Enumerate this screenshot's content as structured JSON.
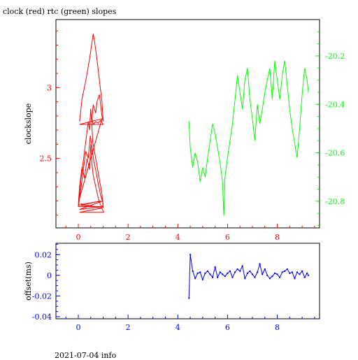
{
  "title": "clock (red) rtc (green) slopes",
  "footer": "2021-07-04 info",
  "colors": {
    "red": "#ff0000",
    "green": "#00ff00",
    "blue": "#0000ff",
    "axis": "#000000"
  },
  "chart_data": [
    {
      "type": "line",
      "panel": "slopes",
      "ylabel": "clockslope",
      "xlim": [
        -0.9,
        9.7
      ],
      "xticks": [
        0,
        2,
        4,
        6,
        8
      ],
      "left_axis": {
        "ylim": [
          2.01,
          3.48
        ],
        "ticks": [
          2.5,
          3
        ],
        "tick_labels": [
          "2.5",
          "3"
        ],
        "color": "#ff0000"
      },
      "right_axis": {
        "ylim": [
          -20.91,
          -20.05
        ],
        "ticks": [
          -20.8,
          -20.6,
          -20.4,
          -20.2
        ],
        "tick_labels": [
          "-20.8",
          "-20.6",
          "-20.4",
          "-20.2"
        ],
        "color": "#00ff00"
      },
      "series": [
        {
          "color": "#ff0000",
          "axis": "left",
          "x": [
            0.05,
            0.15,
            0.3,
            0.45,
            0.55,
            0.6,
            0.65,
            0.75,
            0.85,
            0.95,
            1.0,
            0.95,
            0.85,
            0.75,
            0.7,
            0.6,
            0.55,
            0.6,
            0.7,
            0.8,
            0.9,
            1.0,
            0.05,
            0.95,
            0.02,
            0.1,
            0.2,
            0.3,
            0.4,
            0.45,
            0.5,
            0.55,
            0.58,
            0.65,
            0.75,
            0.85,
            0.95,
            1.0,
            0.98,
            0.05,
            0.95,
            0.0,
            0.1,
            0.2,
            0.3,
            0.4,
            0.48,
            0.55,
            0.62,
            0.7,
            0.8,
            0.9,
            1.0,
            0.95,
            0.1,
            0.9,
            0.0,
            0.05,
            0.15,
            0.25,
            0.35,
            0.45,
            0.5,
            0.55,
            0.6,
            0.7,
            0.8,
            0.9,
            1.02,
            0.05,
            0.95,
            0.1
          ],
          "y": [
            2.76,
            2.92,
            3.05,
            3.2,
            3.32,
            3.38,
            3.33,
            3.2,
            3.05,
            2.9,
            2.76,
            2.8,
            2.95,
            2.9,
            2.82,
            2.88,
            2.78,
            2.74,
            2.76,
            2.75,
            2.77,
            2.74,
            2.74,
            2.78,
            2.2,
            2.35,
            2.48,
            2.62,
            2.76,
            2.7,
            2.85,
            2.72,
            2.62,
            2.55,
            2.45,
            2.35,
            2.25,
            2.15,
            2.2,
            2.14,
            2.16,
            2.16,
            2.28,
            2.42,
            2.55,
            2.5,
            2.66,
            2.58,
            2.48,
            2.42,
            2.32,
            2.24,
            2.18,
            2.15,
            2.17,
            2.2,
            2.17,
            2.3,
            2.44,
            2.36,
            2.5,
            2.42,
            2.6,
            2.46,
            2.38,
            2.3,
            2.22,
            2.17,
            2.12,
            2.12,
            2.15,
            2.18
          ]
        },
        {
          "color": "#00ff00",
          "axis": "right",
          "x": [
            4.45,
            4.5,
            4.6,
            4.7,
            4.8,
            4.9,
            5.0,
            5.1,
            5.2,
            5.3,
            5.4,
            5.5,
            5.6,
            5.7,
            5.8,
            5.85,
            5.9,
            6.0,
            6.1,
            6.2,
            6.3,
            6.4,
            6.5,
            6.6,
            6.7,
            6.8,
            6.9,
            7.0,
            7.1,
            7.2,
            7.3,
            7.4,
            7.5,
            7.6,
            7.7,
            7.8,
            7.9,
            8.0,
            8.1,
            8.2,
            8.3,
            8.4,
            8.5,
            8.6,
            8.7,
            8.8,
            8.9,
            9.0,
            9.1,
            9.2,
            9.25
          ],
          "y": [
            -20.47,
            -20.58,
            -20.66,
            -20.6,
            -20.64,
            -20.72,
            -20.66,
            -20.7,
            -20.62,
            -20.55,
            -20.48,
            -20.52,
            -20.58,
            -20.64,
            -20.72,
            -20.86,
            -20.7,
            -20.62,
            -20.55,
            -20.48,
            -20.38,
            -20.28,
            -20.35,
            -20.42,
            -20.3,
            -20.25,
            -20.38,
            -20.46,
            -20.55,
            -20.4,
            -20.48,
            -20.42,
            -20.35,
            -20.3,
            -20.25,
            -20.38,
            -20.22,
            -20.3,
            -20.38,
            -20.28,
            -20.22,
            -20.32,
            -20.42,
            -20.5,
            -20.56,
            -20.62,
            -20.5,
            -20.36,
            -20.25,
            -20.3,
            -20.35
          ]
        }
      ]
    },
    {
      "type": "scatter",
      "panel": "offset",
      "ylabel": "offset(ms)",
      "xlim": [
        -0.9,
        9.7
      ],
      "ylim": [
        -0.042,
        0.031
      ],
      "xticks": [
        0,
        2,
        4,
        6,
        8
      ],
      "yticks": [
        -0.04,
        -0.02,
        0,
        0.02
      ],
      "ytick_labels": [
        "-0.04",
        "-0.02",
        "0",
        "0.02"
      ],
      "series": [
        {
          "color": "#0000ff",
          "x": [
            4.45,
            4.5,
            4.6,
            4.7,
            4.8,
            4.9,
            5.0,
            5.1,
            5.2,
            5.3,
            5.4,
            5.5,
            5.6,
            5.7,
            5.8,
            5.9,
            6.0,
            6.1,
            6.2,
            6.3,
            6.4,
            6.5,
            6.6,
            6.7,
            6.8,
            6.9,
            7.0,
            7.1,
            7.2,
            7.3,
            7.4,
            7.5,
            7.6,
            7.7,
            7.8,
            7.9,
            8.0,
            8.1,
            8.2,
            8.3,
            8.4,
            8.5,
            8.6,
            8.7,
            8.8,
            8.9,
            9.0,
            9.1,
            9.2,
            9.25
          ],
          "y": [
            -0.022,
            0.02,
            0.004,
            -0.003,
            0.002,
            0.003,
            -0.004,
            0.002,
            0.004,
            0.001,
            -0.002,
            0.008,
            -0.002,
            0.003,
            0.001,
            -0.001,
            0.002,
            0.004,
            -0.002,
            0.003,
            0.006,
            0.004,
            0.009,
            -0.003,
            0.002,
            0.004,
            0.001,
            -0.002,
            0.003,
            0.011,
            0.001,
            0.006,
            0.0,
            -0.003,
            -0.001,
            0.002,
            0.001,
            -0.002,
            0.003,
            0.004,
            0.006,
            0.002,
            0.003,
            -0.003,
            0.003,
            0.001,
            0.004,
            -0.002,
            0.002,
            0.0
          ]
        }
      ]
    }
  ]
}
